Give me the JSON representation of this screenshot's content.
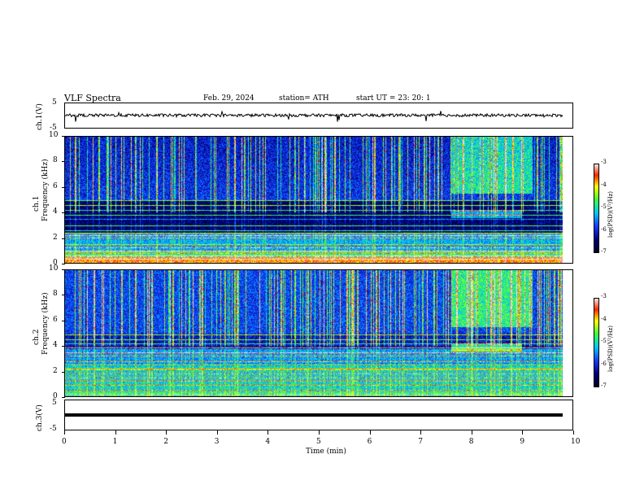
{
  "header": {
    "title": "VLF  Spectra",
    "date": "Feb. 29, 2024",
    "station": "station= ATH",
    "start_ut": "start  UT  =    23: 20: 1"
  },
  "panels": {
    "ch1_label": "ch.1(V)",
    "ch1_ticks": [
      "5",
      "-5"
    ],
    "spec1_label_a": "ch.1",
    "spec1_label_b": "Frequency  (kHz)",
    "spec2_label_a": "ch.2",
    "spec2_label_b": "Frequency  (kHz)",
    "freq_ticks": [
      "10",
      "8",
      "6",
      "4",
      "2",
      "0"
    ],
    "ch3_label": "ch.3(V)",
    "ch3_ticks": [
      "5",
      "-5"
    ]
  },
  "colorbar": {
    "label": "log(PSD)(V²/Hz)",
    "ticks": [
      "-3",
      "-4",
      "-5",
      "-6",
      "-7"
    ]
  },
  "x_axis": {
    "label": "Time  (min)",
    "ticks": [
      "0",
      "1",
      "2",
      "3",
      "4",
      "5",
      "6",
      "7",
      "8",
      "9",
      "10"
    ]
  },
  "chart_data": {
    "type": "heatmap",
    "title": "VLF  Spectra",
    "xlabel": "Time  (min)",
    "ylabel": "Frequency  (kHz)",
    "xlim": [
      0,
      10
    ],
    "ylim": [
      0,
      10
    ],
    "data_end_min": 9.8,
    "colorscale_limits": [
      -7,
      -3
    ],
    "colors": {
      "low": "#000066",
      "mid": "#1a3cff",
      "cyan": "#00e0ff",
      "green": "#40ff40",
      "yellow": "#ffff00",
      "red": "#ff2000",
      "high": "#ffe0e0"
    },
    "series": [
      {
        "name": "ch.1(V)",
        "type": "line",
        "ylim": [
          -5,
          5
        ],
        "baseline": 0.1
      },
      {
        "name": "ch.3(V)",
        "type": "line",
        "ylim": [
          -5,
          5
        ],
        "baseline": 0.0
      }
    ]
  }
}
